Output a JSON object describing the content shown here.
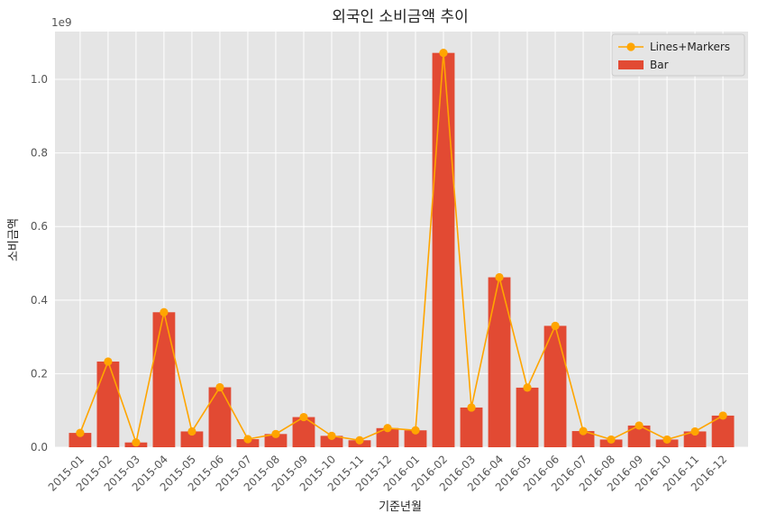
{
  "chart_data": {
    "type": "bar",
    "title": "외국인 소비금액 추이",
    "xlabel": "기준년월",
    "ylabel": "소비금액",
    "y_offset_text": "1e9",
    "y_scale": 1000000000,
    "ylim": [
      0,
      1.13
    ],
    "yticks": [
      "0.0",
      "0.2",
      "0.4",
      "0.6",
      "0.8",
      "1.0"
    ],
    "grid": true,
    "legend_position": "top-right",
    "categories": [
      "2015-01",
      "2015-02",
      "2015-03",
      "2015-04",
      "2015-05",
      "2015-06",
      "2015-07",
      "2015-08",
      "2015-09",
      "2015-10",
      "2015-11",
      "2015-12",
      "2016-01",
      "2016-02",
      "2016-03",
      "2016-04",
      "2016-05",
      "2016-06",
      "2016-07",
      "2016-08",
      "2016-09",
      "2016-10",
      "2016-11",
      "2016-12"
    ],
    "series": [
      {
        "name": "Lines+Markers",
        "kind": "line",
        "color": "#FFA500",
        "values": [
          0.039,
          0.233,
          0.013,
          0.367,
          0.043,
          0.163,
          0.022,
          0.036,
          0.082,
          0.031,
          0.019,
          0.052,
          0.046,
          1.072,
          0.108,
          0.462,
          0.162,
          0.33,
          0.044,
          0.021,
          0.059,
          0.021,
          0.043,
          0.086
        ]
      },
      {
        "name": "Bar",
        "kind": "bar",
        "color": "#E24A33",
        "values": [
          0.039,
          0.233,
          0.013,
          0.367,
          0.043,
          0.163,
          0.022,
          0.036,
          0.082,
          0.031,
          0.019,
          0.052,
          0.046,
          1.072,
          0.108,
          0.462,
          0.162,
          0.33,
          0.044,
          0.021,
          0.059,
          0.021,
          0.043,
          0.086
        ]
      }
    ]
  }
}
